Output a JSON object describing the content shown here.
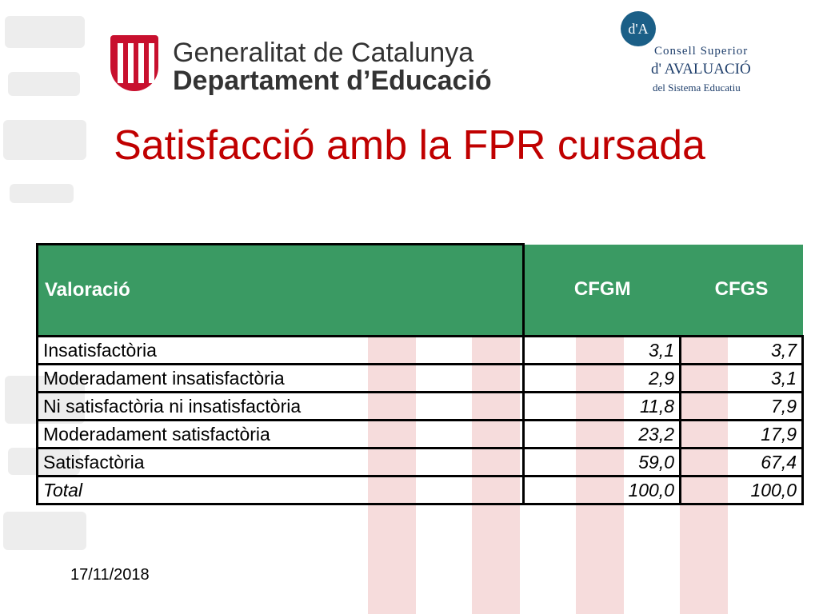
{
  "header": {
    "gen_line1": "Generalitat de Catalunya",
    "gen_line2": "Departament d’Educació",
    "csa_mark": "d'A",
    "csa_line1": "Consell Superior",
    "csa_line2": "d' AVALUACIÓ",
    "csa_line3": "del Sistema Educatiu"
  },
  "title": "Satisfacció amb la FPR cursada",
  "table": {
    "headers": [
      "Valoració",
      "CFGM",
      "CFGS"
    ],
    "rows": [
      {
        "label": "Insatisfactòria",
        "cfgm": "3,1",
        "cfgs": "3,7"
      },
      {
        "label": "Moderadament insatisfactòria",
        "cfgm": "2,9",
        "cfgs": "3,1"
      },
      {
        "label": "Ni satisfactòria ni insatisfactòria",
        "cfgm": "11,8",
        "cfgs": "7,9"
      },
      {
        "label": "Moderadament satisfactòria",
        "cfgm": "23,2",
        "cfgs": "17,9"
      },
      {
        "label": "Satisfactòria",
        "cfgm": "59,0",
        "cfgs": "67,4"
      },
      {
        "label": "Total",
        "cfgm": "100,0",
        "cfgs": "100,0"
      }
    ]
  },
  "footer": {
    "date": "17/11/2018"
  },
  "colors": {
    "title": "#c00000",
    "header_bg": "#3a9a63",
    "seal": "#c8102e",
    "csa": "#1e3e6b"
  }
}
